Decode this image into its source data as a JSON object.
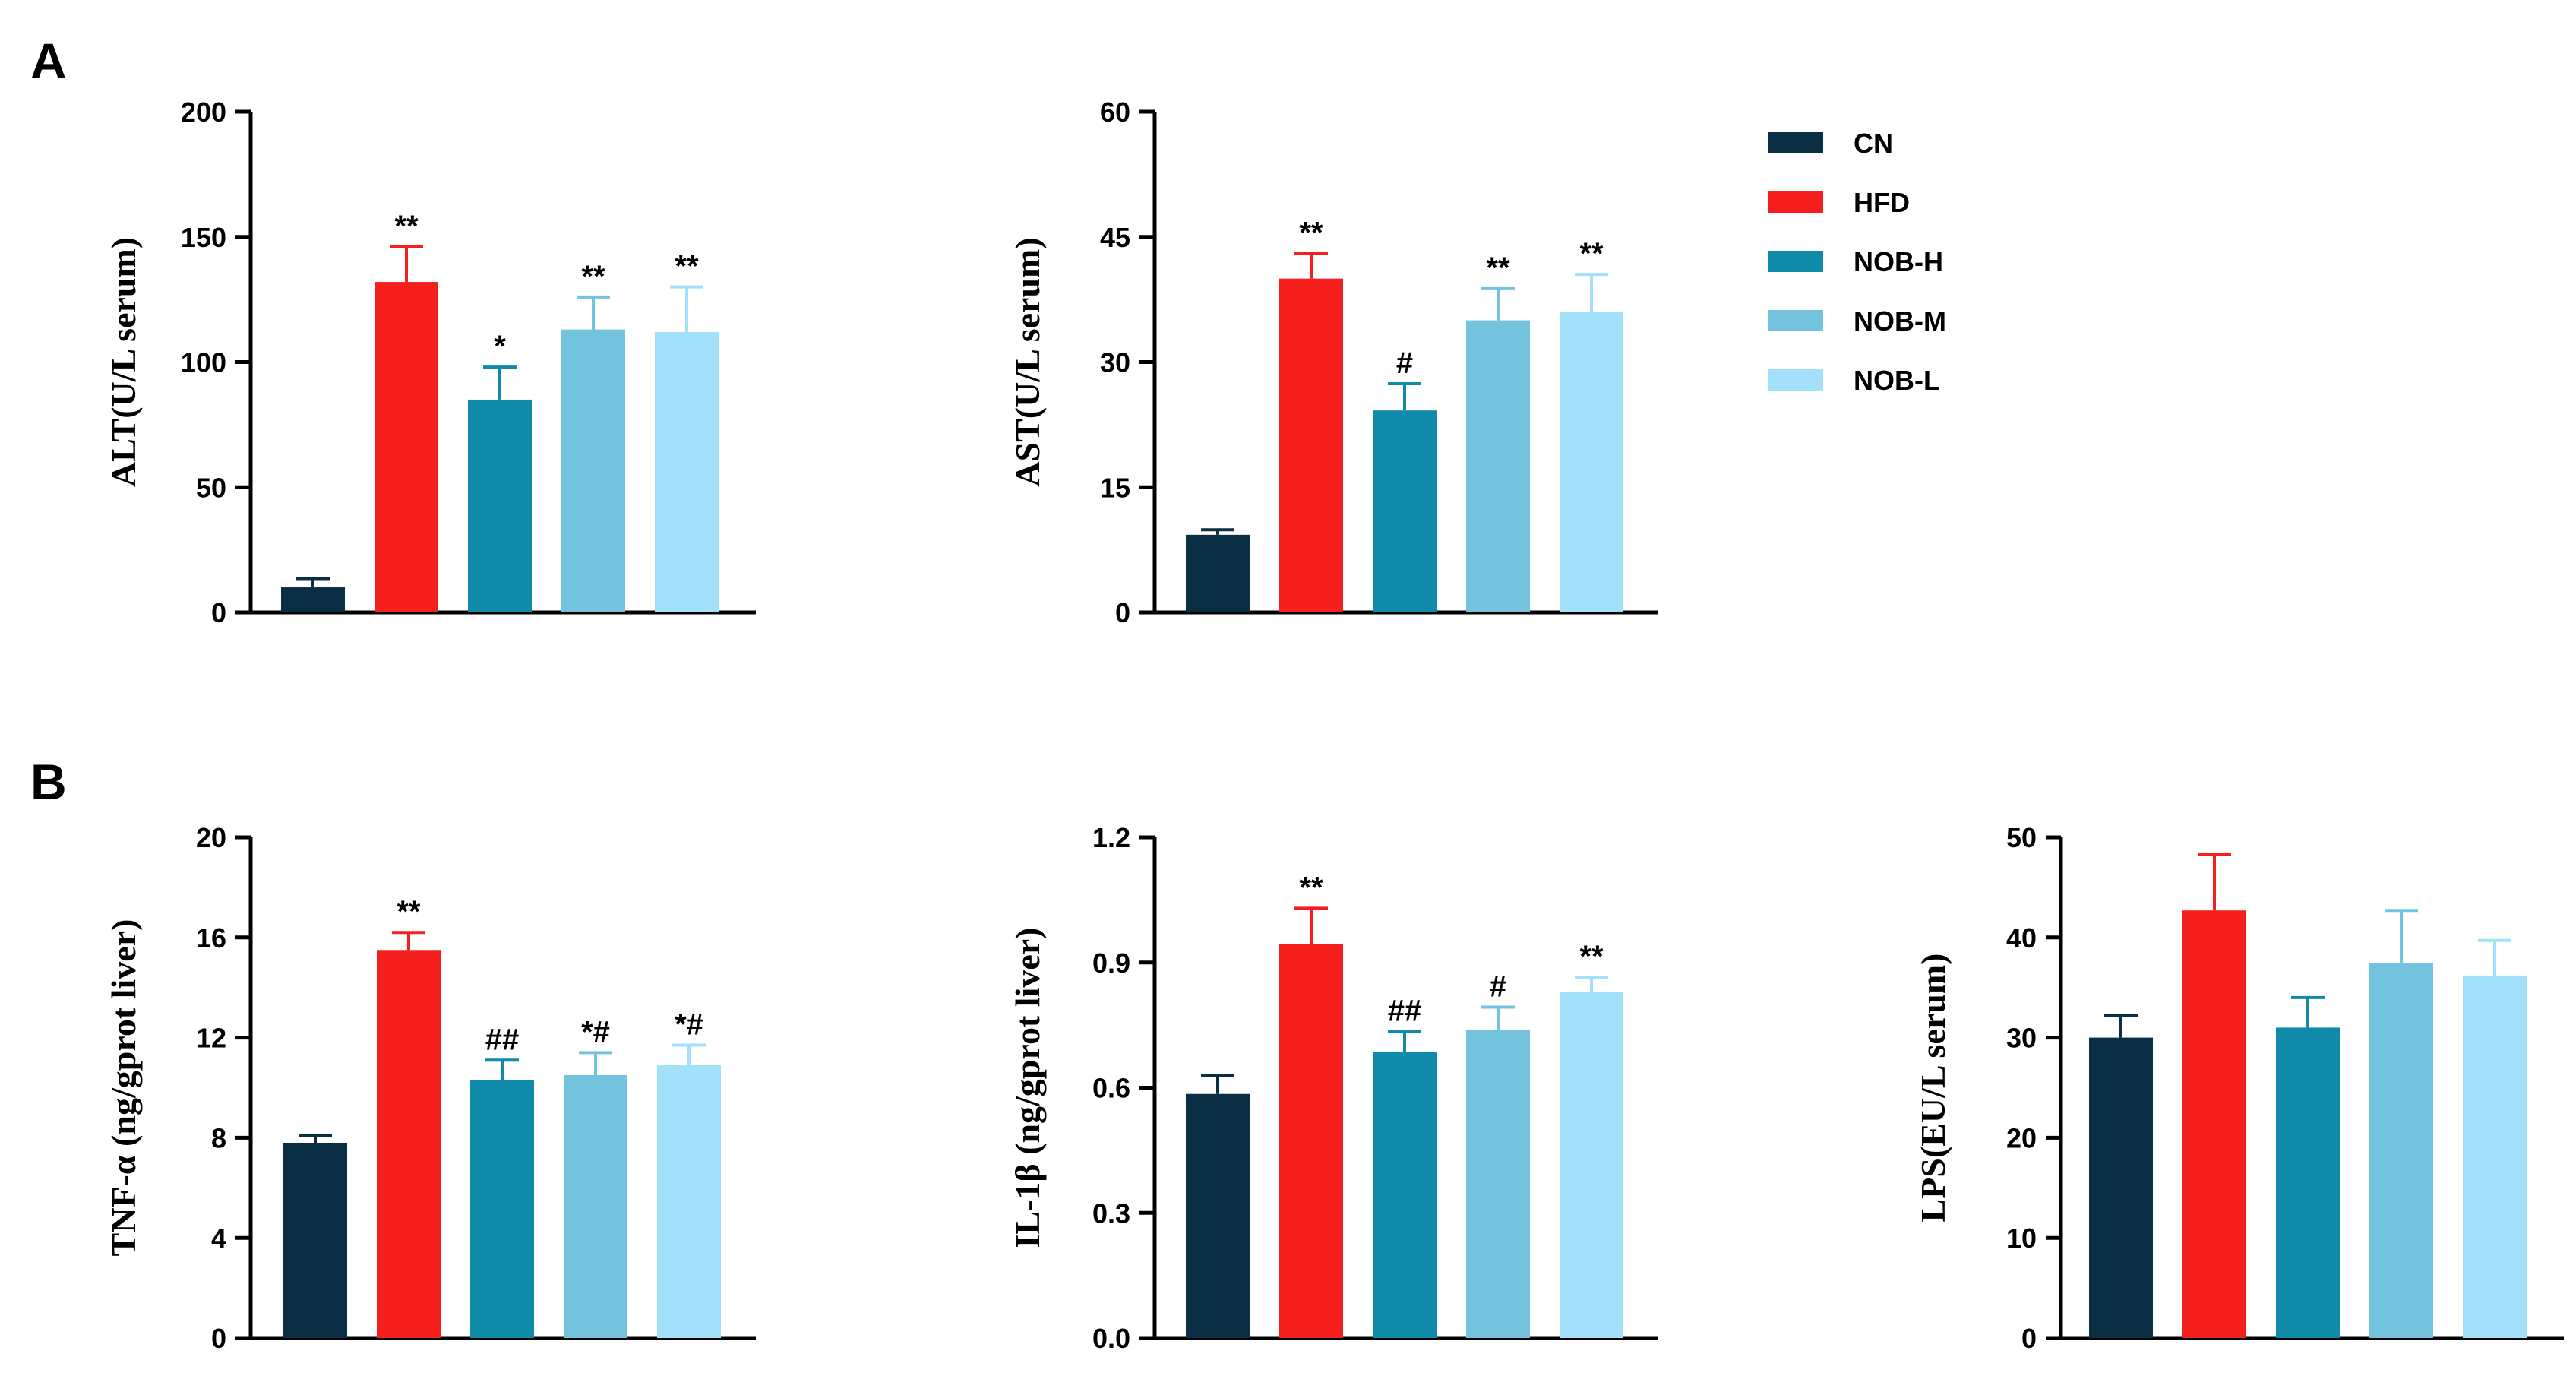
{
  "figure": {
    "panels": [
      {
        "id": "A",
        "label": "A"
      },
      {
        "id": "B",
        "label": "B"
      }
    ],
    "legend": {
      "position": "top-right",
      "entries": [
        {
          "label": "CN",
          "color": "#0a2f45"
        },
        {
          "label": "HFD",
          "color": "#f5201e"
        },
        {
          "label": "NOB-H",
          "color": "#0f8ba9"
        },
        {
          "label": "NOB-M",
          "color": "#74c3de"
        },
        {
          "label": "NOB-L",
          "color": "#a3e0fa"
        }
      ]
    }
  },
  "chart_data": [
    {
      "type": "bar",
      "panel": "A",
      "ylabel": "ALT(U/L serum)",
      "ylim": [
        0,
        200
      ],
      "yticks": [
        "0",
        "50",
        "100",
        "150",
        "200"
      ],
      "categories": [
        "CN",
        "HFD",
        "NOB-H",
        "NOB-M",
        "NOB-L"
      ],
      "values": [
        10,
        132,
        85,
        113,
        112
      ],
      "errors": [
        3.5,
        14,
        13,
        13,
        18
      ],
      "annotations": [
        "",
        "**",
        "*",
        "**",
        "**"
      ]
    },
    {
      "type": "bar",
      "panel": "A",
      "ylabel": "AST(U/L serum)",
      "ylim": [
        0,
        60
      ],
      "yticks": [
        "0",
        "15",
        "30",
        "45",
        "60"
      ],
      "categories": [
        "CN",
        "HFD",
        "NOB-H",
        "NOB-M",
        "NOB-L"
      ],
      "values": [
        9.3,
        40,
        24.2,
        35,
        36
      ],
      "errors": [
        0.6,
        3,
        3.2,
        3.8,
        4.5
      ],
      "annotations": [
        "",
        "**",
        "#",
        "**",
        "**"
      ]
    },
    {
      "type": "bar",
      "panel": "B",
      "ylabel": "TNF-α (ng/gprot liver)",
      "ylim": [
        0,
        20
      ],
      "yticks": [
        "0",
        "4",
        "8",
        "12",
        "16",
        "20"
      ],
      "categories": [
        "CN",
        "HFD",
        "NOB-H",
        "NOB-M",
        "NOB-L"
      ],
      "values": [
        7.8,
        15.5,
        10.3,
        10.5,
        10.9
      ],
      "errors": [
        0.3,
        0.7,
        0.8,
        0.9,
        0.8
      ],
      "annotations": [
        "",
        "**",
        "##",
        "*#",
        "*#"
      ]
    },
    {
      "type": "bar",
      "panel": "B",
      "ylabel": "IL-1β (ng/gprot liver)",
      "ylim": [
        0,
        1.2
      ],
      "yticks": [
        "0.0",
        "0.3",
        "0.6",
        "0.9",
        "1.2"
      ],
      "categories": [
        "CN",
        "HFD",
        "NOB-H",
        "NOB-M",
        "NOB-L"
      ],
      "values": [
        0.585,
        0.945,
        0.685,
        0.738,
        0.83
      ],
      "errors": [
        0.045,
        0.085,
        0.05,
        0.055,
        0.035
      ],
      "annotations": [
        "",
        "**",
        "##",
        "#",
        "**"
      ]
    },
    {
      "type": "bar",
      "panel": "B",
      "ylabel": "LPS(EU/L serum)",
      "ylim": [
        0,
        50
      ],
      "yticks": [
        "0",
        "10",
        "20",
        "30",
        "40",
        "50"
      ],
      "categories": [
        "CN",
        "HFD",
        "NOB-H",
        "NOB-M",
        "NOB-L"
      ],
      "values": [
        30,
        42.7,
        31,
        37.4,
        36.2
      ],
      "errors": [
        2.2,
        5.6,
        3,
        5.3,
        3.5
      ],
      "annotations": [
        "",
        "",
        "",
        "",
        ""
      ]
    }
  ]
}
